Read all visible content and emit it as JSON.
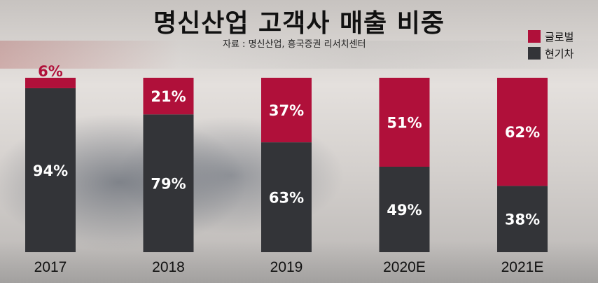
{
  "title": "명신산업 고객사 매출 비중",
  "source": "자료 : 명신산업, 흥국증권 리서치센터",
  "colors": {
    "global": "#b0103a",
    "hyundai": "#333438"
  },
  "legend": [
    {
      "label": "글로벌",
      "color": "#b0103a"
    },
    {
      "label": "현기차",
      "color": "#333438"
    }
  ],
  "chart_data": {
    "type": "bar",
    "stacked": true,
    "categories": [
      "2017",
      "2018",
      "2019",
      "2020E",
      "2021E"
    ],
    "series": [
      {
        "name": "현기차",
        "values": [
          94,
          79,
          63,
          49,
          38
        ],
        "labels": [
          "94%",
          "79%",
          "63%",
          "49%",
          "38%"
        ]
      },
      {
        "name": "글로벌",
        "values": [
          6,
          21,
          37,
          51,
          62
        ],
        "labels": [
          "6%",
          "21%",
          "37%",
          "51%",
          "62%"
        ]
      }
    ],
    "title": "명신산업 고객사 매출 비중",
    "ylim": [
      0,
      100
    ],
    "grid": false,
    "legend_position": "top-right"
  }
}
